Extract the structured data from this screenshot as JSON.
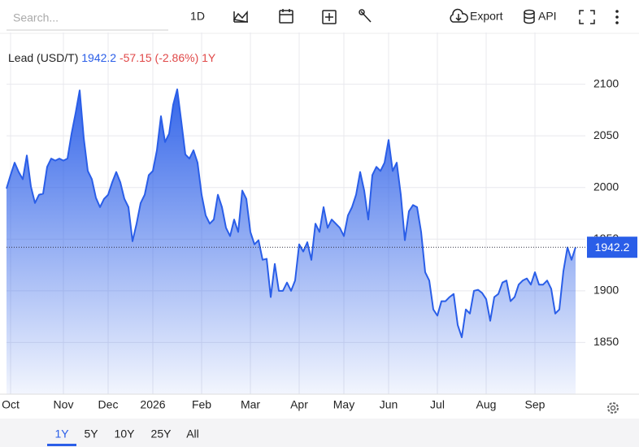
{
  "toolbar": {
    "search_placeholder": "Search...",
    "interval": "1D",
    "export": "Export",
    "api": "API"
  },
  "chart_data": {
    "type": "area",
    "title": "Lead (USD/T)",
    "change": "-57.15 (-2.86%)",
    "period": "1Y",
    "color": "#2a5ee8",
    "categories": [
      null,
      "Oct",
      null,
      null,
      null,
      null,
      null,
      null,
      null,
      null,
      null,
      null,
      null,
      null,
      "Nov",
      null,
      null,
      null,
      null,
      null,
      null,
      null,
      null,
      null,
      null,
      "Dec",
      null,
      null,
      null,
      null,
      null,
      null,
      null,
      null,
      null,
      null,
      "2026",
      null,
      null,
      null,
      null,
      null,
      null,
      null,
      null,
      null,
      null,
      null,
      "Feb",
      null,
      null,
      null,
      null,
      null,
      null,
      null,
      null,
      null,
      null,
      null,
      "Mar",
      null,
      null,
      null,
      null,
      null,
      null,
      null,
      null,
      null,
      null,
      null,
      "Apr",
      null,
      null,
      null,
      null,
      null,
      null,
      null,
      null,
      null,
      null,
      "May",
      null,
      null,
      null,
      null,
      null,
      null,
      null,
      null,
      null,
      null,
      "Jun",
      null,
      null,
      null,
      null,
      null,
      null,
      null,
      null,
      null,
      null,
      null,
      "Jul",
      null,
      null,
      null,
      null,
      null,
      null,
      null,
      null,
      null,
      null,
      null,
      "Aug",
      null,
      null,
      null,
      null,
      null,
      null,
      null,
      null,
      null,
      null,
      null,
      "Sep",
      null,
      null,
      null,
      null,
      null,
      null,
      null,
      null,
      null,
      null
    ],
    "values": [
      1999,
      2012,
      2024,
      2015,
      2008,
      2031,
      2001,
      1985,
      1993,
      1994,
      2020,
      2028,
      2026,
      2028,
      2026,
      2028,
      2052,
      2072,
      2094,
      2048,
      2016,
      2008,
      1990,
      1981,
      1989,
      1993,
      2005,
      2015,
      2005,
      1989,
      1981,
      1948,
      1965,
      1985,
      1993,
      2012,
      2016,
      2036,
      2069,
      2044,
      2052,
      2080,
      2095,
      2064,
      2032,
      2028,
      2036,
      2024,
      1993,
      1973,
      1965,
      1969,
      1993,
      1981,
      1961,
      1953,
      1969,
      1957,
      1997,
      1989,
      1957,
      1945,
      1949,
      1930,
      1931,
      1894,
      1926,
      1900,
      1900,
      1908,
      1900,
      1910,
      1945,
      1938,
      1947,
      1930,
      1965,
      1957,
      1981,
      1961,
      1969,
      1965,
      1961,
      1953,
      1973,
      1981,
      1993,
      2015,
      1997,
      1969,
      2012,
      2020,
      2016,
      2024,
      2046,
      2016,
      2024,
      1993,
      1949,
      1977,
      1983,
      1981,
      1957,
      1918,
      1910,
      1882,
      1876,
      1890,
      1890,
      1894,
      1897,
      1867,
      1855,
      1882,
      1878,
      1900,
      1901,
      1898,
      1892,
      1871,
      1894,
      1897,
      1908,
      1910,
      1890,
      1894,
      1906,
      1910,
      1912,
      1906,
      1918,
      1906,
      1906,
      1910,
      1902,
      1878,
      1882,
      1919,
      1942,
      1930,
      1942.2
    ],
    "ylim": [
      1800,
      2150
    ],
    "yticks": [
      1850,
      1900,
      1950,
      2000,
      2050,
      2100
    ],
    "grid": true
  },
  "ranges": [
    "1Y",
    "5Y",
    "10Y",
    "25Y",
    "All"
  ],
  "active_range": 0
}
